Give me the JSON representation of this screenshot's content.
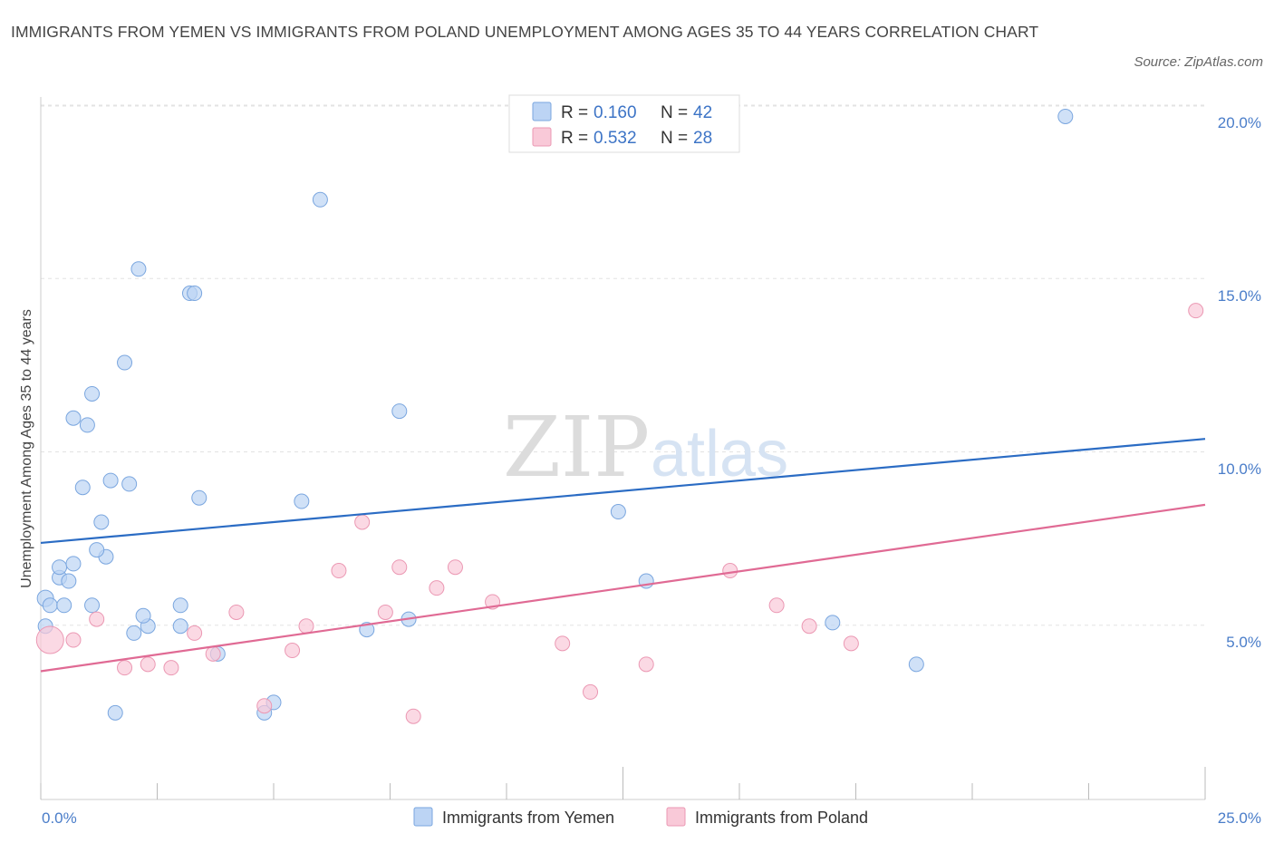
{
  "title": "IMMIGRANTS FROM YEMEN VS IMMIGRANTS FROM POLAND UNEMPLOYMENT AMONG AGES 35 TO 44 YEARS CORRELATION CHART",
  "source": "Source: ZipAtlas.com",
  "watermark": {
    "zip": "ZIP",
    "atlas": "atlas"
  },
  "legend": {
    "rows": [
      {
        "r_label": "R = ",
        "r_value": "0.160",
        "n_label": "N = ",
        "n_value": "42"
      },
      {
        "r_label": "R = ",
        "r_value": "0.532",
        "n_label": "N = ",
        "n_value": "28"
      }
    ]
  },
  "colors": {
    "yemen_fill": "#bcd4f4",
    "yemen_stroke": "#7aa6df",
    "yemen_line": "#2b6cc4",
    "poland_fill": "#f9c9d8",
    "poland_stroke": "#eb98b3",
    "poland_line": "#e06a94",
    "grid": "#e3e3e3",
    "axis": "#cccccc"
  },
  "chart_data": {
    "type": "scatter",
    "xlabel": "",
    "ylabel": "Unemployment Among Ages 35 to 44 years",
    "xlim": [
      0,
      25
    ],
    "ylim": [
      0,
      20
    ],
    "x_tick_labels": [
      "0.0%",
      "25.0%"
    ],
    "y_tick_labels": [
      "5.0%",
      "10.0%",
      "15.0%",
      "20.0%"
    ],
    "y_ticks": [
      5,
      10,
      15,
      20
    ],
    "grid": true,
    "legend_position": "top-center",
    "series": [
      {
        "name": "Immigrants from Yemen",
        "r": 0.16,
        "n": 42,
        "trend": [
          [
            0,
            7.4
          ],
          [
            25,
            10.4
          ]
        ],
        "points": [
          [
            0.1,
            5.8,
            9
          ],
          [
            0.2,
            5.6,
            8
          ],
          [
            0.1,
            5.0,
            8
          ],
          [
            0.4,
            6.4,
            8
          ],
          [
            0.5,
            5.6,
            8
          ],
          [
            0.4,
            6.7,
            8
          ],
          [
            0.6,
            6.3,
            8
          ],
          [
            0.7,
            6.8,
            8
          ],
          [
            0.7,
            11.0,
            8
          ],
          [
            1.0,
            10.8,
            8
          ],
          [
            1.1,
            11.7,
            8
          ],
          [
            0.9,
            9.0,
            8
          ],
          [
            1.3,
            8.0,
            8
          ],
          [
            1.4,
            7.0,
            8
          ],
          [
            1.2,
            7.2,
            8
          ],
          [
            1.5,
            9.2,
            8
          ],
          [
            1.1,
            5.6,
            8
          ],
          [
            1.8,
            12.6,
            8
          ],
          [
            2.1,
            15.3,
            8
          ],
          [
            1.9,
            9.1,
            8
          ],
          [
            2.0,
            4.8,
            8
          ],
          [
            2.3,
            5.0,
            8
          ],
          [
            2.2,
            5.3,
            8
          ],
          [
            1.6,
            2.5,
            8
          ],
          [
            3.2,
            14.6,
            8
          ],
          [
            3.3,
            14.6,
            8
          ],
          [
            3.4,
            8.7,
            8
          ],
          [
            3.0,
            5.6,
            8
          ],
          [
            3.0,
            5.0,
            8
          ],
          [
            3.8,
            4.2,
            8
          ],
          [
            4.8,
            2.5,
            8
          ],
          [
            5.0,
            2.8,
            8
          ],
          [
            5.6,
            8.6,
            8
          ],
          [
            6.0,
            17.3,
            8
          ],
          [
            7.0,
            4.9,
            8
          ],
          [
            7.7,
            11.2,
            8
          ],
          [
            7.9,
            5.2,
            8
          ],
          [
            12.4,
            8.3,
            8
          ],
          [
            13.0,
            6.3,
            8
          ],
          [
            17.0,
            5.1,
            8
          ],
          [
            18.8,
            3.9,
            8
          ],
          [
            22.0,
            19.7,
            8
          ]
        ]
      },
      {
        "name": "Immigrants from Poland",
        "r": 0.532,
        "n": 28,
        "trend": [
          [
            0,
            3.7
          ],
          [
            25,
            8.5
          ]
        ],
        "points": [
          [
            0.2,
            4.6,
            15
          ],
          [
            0.7,
            4.6,
            8
          ],
          [
            1.2,
            5.2,
            8
          ],
          [
            1.8,
            3.8,
            8
          ],
          [
            2.3,
            3.9,
            8
          ],
          [
            2.8,
            3.8,
            8
          ],
          [
            3.3,
            4.8,
            8
          ],
          [
            3.7,
            4.2,
            8
          ],
          [
            4.2,
            5.4,
            8
          ],
          [
            4.8,
            2.7,
            8
          ],
          [
            5.4,
            4.3,
            8
          ],
          [
            5.7,
            5.0,
            8
          ],
          [
            6.4,
            6.6,
            8
          ],
          [
            6.9,
            8.0,
            8
          ],
          [
            7.4,
            5.4,
            8
          ],
          [
            7.7,
            6.7,
            8
          ],
          [
            8.0,
            2.4,
            8
          ],
          [
            8.5,
            6.1,
            8
          ],
          [
            8.9,
            6.7,
            8
          ],
          [
            9.7,
            5.7,
            8
          ],
          [
            11.2,
            4.5,
            8
          ],
          [
            11.8,
            3.1,
            8
          ],
          [
            13.0,
            3.9,
            8
          ],
          [
            14.8,
            6.6,
            8
          ],
          [
            15.8,
            5.6,
            8
          ],
          [
            16.5,
            5.0,
            8
          ],
          [
            17.4,
            4.5,
            8
          ],
          [
            24.8,
            14.1,
            8
          ]
        ]
      }
    ]
  }
}
